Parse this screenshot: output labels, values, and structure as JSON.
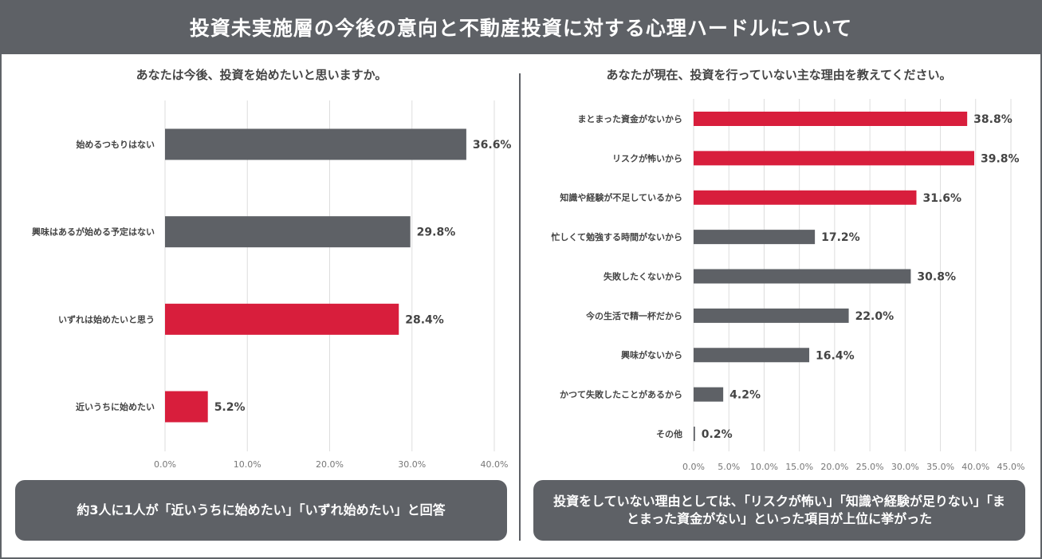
{
  "header": {
    "title": "投資未実施層の今後の意向と不動産投資に対する心理ハードルについて"
  },
  "colors": {
    "highlight": "#d81e3c",
    "neutral": "#5e6166",
    "grid": "#dddddd",
    "text": "#444444"
  },
  "left": {
    "subtitle": "あなたは今後、投資を始めたいと思いますか。",
    "callout": "約3人に1人が「近いうちに始めたい」「いずれ始めたい」と回答"
  },
  "right": {
    "subtitle": "あなたが現在、投資を行っていない主な理由を教えてください。",
    "callout": "投資をしていない理由としては、「リスクが怖い」「知識や経験が足りない」「まとまった資金がない」といった項目が上位に挙がった"
  },
  "chart_data": [
    {
      "type": "bar",
      "orientation": "horizontal",
      "title": "あなたは今後、投資を始めたいと思いますか。",
      "categories": [
        "始めるつもりはない",
        "興味はあるが始める予定はない",
        "いずれは始めたいと思う",
        "近いうちに始めたい"
      ],
      "values": [
        36.6,
        29.8,
        28.4,
        5.2
      ],
      "value_labels": [
        "36.6%",
        "29.8%",
        "28.4%",
        "5.2%"
      ],
      "highlight": [
        false,
        false,
        true,
        true
      ],
      "xlim": [
        0,
        40
      ],
      "xticks": [
        "0.0%",
        "10.0%",
        "20.0%",
        "30.0%",
        "40.0%"
      ],
      "grid": true
    },
    {
      "type": "bar",
      "orientation": "horizontal",
      "title": "あなたが現在、投資を行っていない主な理由を教えてください。",
      "categories": [
        "まとまった資金がないから",
        "リスクが怖いから",
        "知識や経験が不足しているから",
        "忙しくて勉強する時間がないから",
        "失敗したくないから",
        "今の生活で精一杯だから",
        "興味がないから",
        "かつて失敗したことがあるから",
        "その他"
      ],
      "values": [
        38.8,
        39.8,
        31.6,
        17.2,
        30.8,
        22.0,
        16.4,
        4.2,
        0.2
      ],
      "value_labels": [
        "38.8%",
        "39.8%",
        "31.6%",
        "17.2%",
        "30.8%",
        "22.0%",
        "16.4%",
        "4.2%",
        "0.2%"
      ],
      "highlight": [
        true,
        true,
        true,
        false,
        false,
        false,
        false,
        false,
        false
      ],
      "xlim": [
        0,
        45
      ],
      "xticks": [
        "0.0%",
        "5.0%",
        "10.0%",
        "15.0%",
        "20.0%",
        "25.0%",
        "30.0%",
        "35.0%",
        "40.0%",
        "45.0%"
      ],
      "grid": true
    }
  ]
}
